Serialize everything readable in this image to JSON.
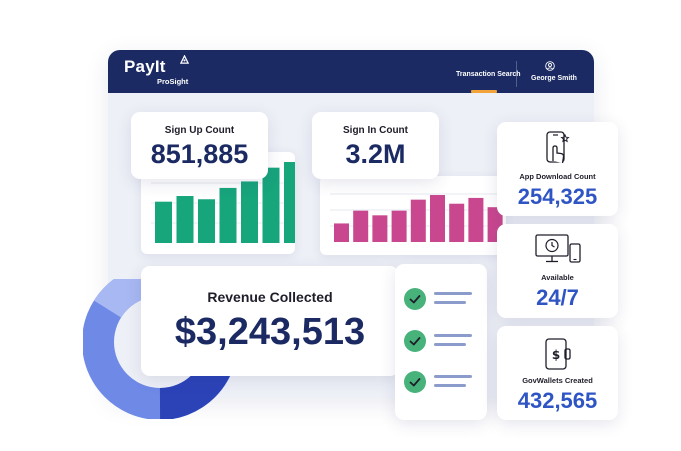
{
  "brand": {
    "name": "PayIt",
    "product": "ProSight"
  },
  "nav": {
    "transaction_search": "Transaction Search",
    "user_name": "George Smith"
  },
  "sign_up": {
    "label": "Sign Up Count",
    "value": "851,885",
    "bar_levels": [
      0.51,
      0.58,
      0.54,
      0.68,
      0.76,
      0.93,
      1.0
    ]
  },
  "sign_in": {
    "label": "Sign In Count",
    "value": "3.2M",
    "bar_levels": [
      0.32,
      0.54,
      0.46,
      0.54,
      0.73,
      0.81,
      0.66,
      0.76,
      0.6
    ]
  },
  "revenue": {
    "label": "Revenue Collected",
    "value": "$3,243,513"
  },
  "app_downloads": {
    "label": "App Download Count",
    "value": "254,325"
  },
  "availability": {
    "label": "Available",
    "value": "24/7"
  },
  "govwallets": {
    "label": "GovWallets Created",
    "value": "432,565"
  },
  "checklist": {
    "items": 3
  },
  "colors": {
    "navy": "#1b2a63",
    "accent_blue": "#2f55c5",
    "green": "#17a57c",
    "magenta": "#c8478f",
    "check_green": "#47b27a",
    "nav_underline": "#f2a33a"
  }
}
